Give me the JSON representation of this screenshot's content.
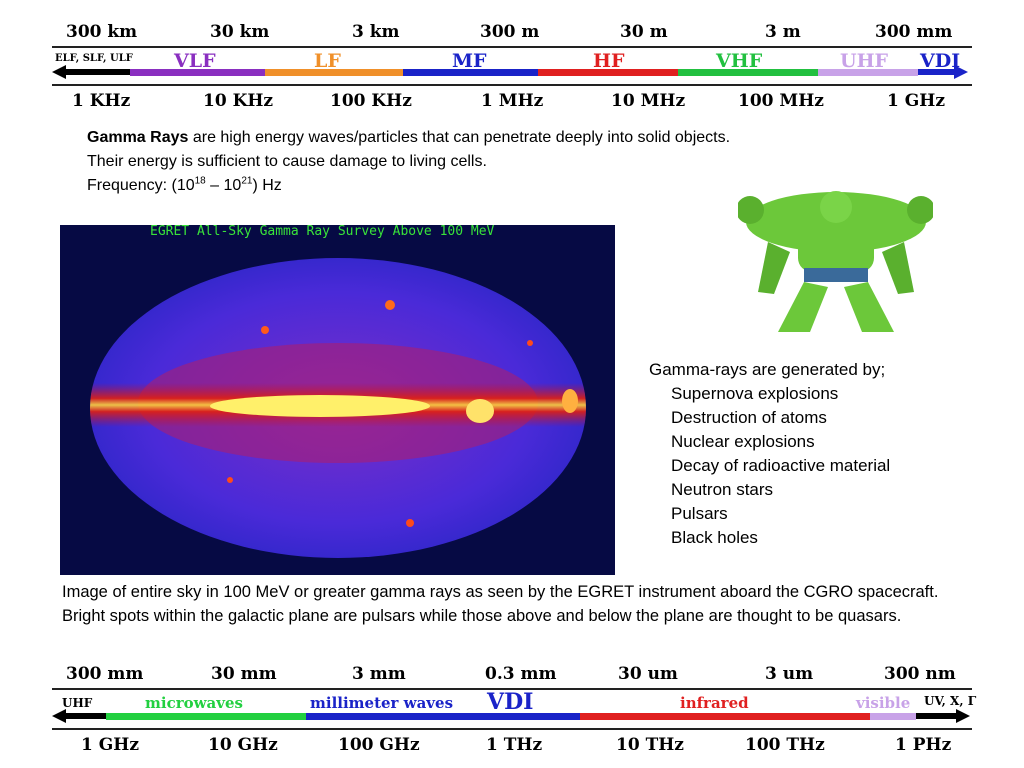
{
  "top_scale": {
    "wavelengths": [
      "300 km",
      "30 km",
      "3 km",
      "300 m",
      "30 m",
      "3 m",
      "300 mm"
    ],
    "frequencies": [
      "1 KHz",
      "10 KHz",
      "100 KHz",
      "1 MHz",
      "10 MHz",
      "100 MHz",
      "1 GHz"
    ],
    "left_end": "ELF, SLF, ULF",
    "bands": [
      {
        "label": "VLF",
        "color": "#8a2fc0"
      },
      {
        "label": "LF",
        "color": "#f0902a"
      },
      {
        "label": "MF",
        "color": "#1a23c8"
      },
      {
        "label": "HF",
        "color": "#e02020"
      },
      {
        "label": "VHF",
        "color": "#22c040"
      },
      {
        "label": "UHF",
        "color": "#c8a2e8"
      },
      {
        "label": "VDI",
        "color": "#1a23c8"
      }
    ]
  },
  "gamma": {
    "title": "Gamma Rays",
    "line1_rest": " are high energy waves/particles that can penetrate deeply into solid objects.",
    "line2": "Their energy is sufficient to cause damage to living cells.",
    "freq_prefix": "Frequency: (10",
    "freq_exp1": "18",
    "freq_mid": " – 10",
    "freq_exp2": "21",
    "freq_suffix": ") Hz"
  },
  "sky_image": {
    "title": "EGRET All-Sky Gamma Ray Survey Above 100 MeV",
    "caption": "Image of entire sky in 100 MeV or greater gamma rays as seen by the EGRET instrument aboard the CGRO spacecraft. Bright spots within the galactic plane are pulsars while those above and below the plane are thought to be quasars."
  },
  "generated_by": {
    "heading": "Gamma-rays are generated by;",
    "items": [
      "Supernova explosions",
      "Destruction of atoms",
      "Nuclear explosions",
      "Decay of radioactive material",
      "Neutron stars",
      "Pulsars",
      "Black holes"
    ]
  },
  "bottom_scale": {
    "wavelengths": [
      "300 mm",
      "30 mm",
      "3 mm",
      "0.3 mm",
      "30 um",
      "3 um",
      "300 nm"
    ],
    "frequencies": [
      "1 GHz",
      "10 GHz",
      "100 GHz",
      "1 THz",
      "10 THz",
      "100 THz",
      "1 PHz"
    ],
    "left_end": "UHF",
    "right_end": "UV, X, Γ",
    "bands": [
      {
        "label": "microwaves",
        "color": "#22d040"
      },
      {
        "label": "millimeter waves",
        "color": "#1a23c8"
      },
      {
        "label": "VDI",
        "color": "#1a23c8"
      },
      {
        "label": "infrared",
        "color": "#e02020"
      },
      {
        "label": "visible",
        "color": "#c8a2e8"
      }
    ]
  }
}
